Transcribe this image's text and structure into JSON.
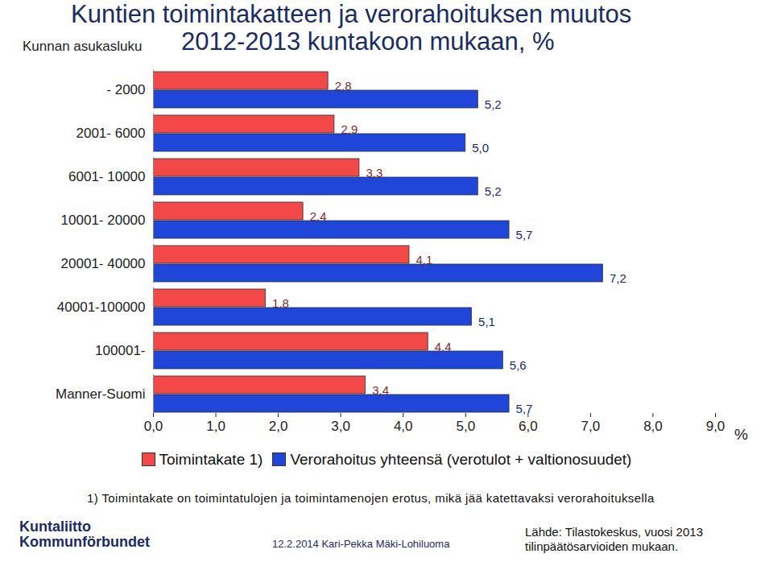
{
  "chart_data": {
    "type": "bar",
    "orientation": "horizontal",
    "title": "Kuntien toimintakatteen ja verorahoituksen muutos",
    "subtitle": "2012-2013 kuntakoon mukaan, %",
    "y_label": "Kunnan asukasluku",
    "x_label": "%",
    "categories": [
      "- 2000",
      "2001- 6000",
      "6001- 10000",
      "10001- 20000",
      "20001- 40000",
      "40001-100000",
      "100001-",
      "Manner-Suomi"
    ],
    "series": [
      {
        "name": "Toimintakate 1)",
        "color": "#f24848",
        "values": [
          2.8,
          2.9,
          3.3,
          2.4,
          4.1,
          1.8,
          4.4,
          3.4
        ],
        "value_labels": [
          "2,8",
          "2,9",
          "3,3",
          "2,4",
          "4,1",
          "1,8",
          "4,4",
          "3,4"
        ]
      },
      {
        "name": "Verorahoitus yhteensä (verotulot + valtionosuudet)",
        "color": "#1f45d9",
        "values": [
          5.2,
          5.0,
          5.2,
          5.7,
          7.2,
          5.1,
          5.6,
          5.7
        ],
        "value_labels": [
          "5,2",
          "5,0",
          "5,2",
          "5,7",
          "7,2",
          "5,1",
          "5,6",
          "5,7"
        ]
      }
    ],
    "xlim": [
      0,
      9
    ],
    "xticks": [
      {
        "value": 0,
        "label": "0,0"
      },
      {
        "value": 1,
        "label": "1,0"
      },
      {
        "value": 2,
        "label": "2,0"
      },
      {
        "value": 3,
        "label": "3,0"
      },
      {
        "value": 4,
        "label": "4,0"
      },
      {
        "value": 5,
        "label": "5,0"
      },
      {
        "value": 6,
        "label": "6,0"
      },
      {
        "value": 7,
        "label": "7,0"
      },
      {
        "value": 8,
        "label": "8,0"
      },
      {
        "value": 9,
        "label": "9,0"
      }
    ],
    "grid": false,
    "legend": "bottom",
    "data_labels": true,
    "annotations": {
      "footnote": "1) Toimintakate on toimintatulojen ja toimintamenojen erotus, mikä jää katettavaksi verorahoituksella",
      "logo": [
        "Kuntaliitto",
        "Kommunförbundet"
      ],
      "date_author": "12.2.2014 Kari-Pekka Mäki-Lohiluoma",
      "source": [
        "Lähde: Tilastokeskus, vuosi 2013",
        "tilinpäätösarvioiden mukaan."
      ]
    }
  }
}
